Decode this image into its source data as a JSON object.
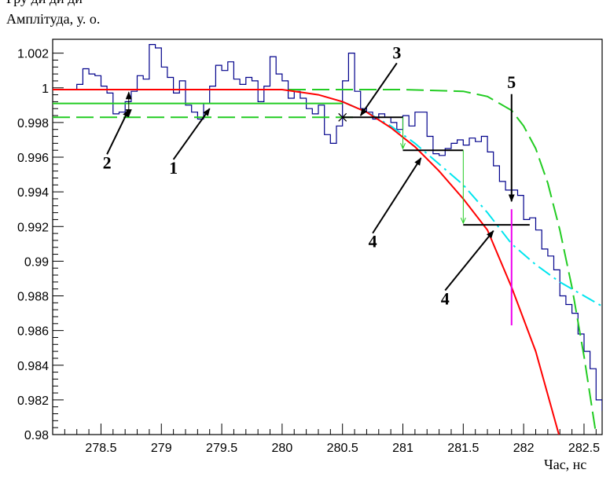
{
  "header_fragment": "Гру        ди           ди     ди",
  "chart_data": {
    "type": "line",
    "xlabel": "Час, нс",
    "ylabel": "Амплітуда, у. о.",
    "xlim": [
      278.1,
      282.65
    ],
    "ylim": [
      0.98,
      1.0028
    ],
    "xticks": [
      278.5,
      279,
      279.5,
      280,
      280.5,
      281,
      281.5,
      282,
      282.5
    ],
    "yticks": [
      0.98,
      0.982,
      0.984,
      0.986,
      0.988,
      0.99,
      0.992,
      0.994,
      0.996,
      0.998,
      1,
      1.002
    ],
    "ytick_labels": [
      "0.98",
      "0.982",
      "0.984",
      "0.986",
      "0.988",
      "0.99",
      "0.992",
      "0.994",
      "0.996",
      "0.998",
      "1",
      "1.002"
    ],
    "grid": false,
    "colors": {
      "histogram": "#00008b",
      "fit": "#ff0000",
      "envelope": "#22cc22",
      "smooth": "#00e5ee",
      "marker": "#ee00ee",
      "bars": "#000000"
    },
    "histogram": {
      "edges_start": 278.1,
      "bin_width": 0.05,
      "values": [
        0.9999,
        0.9999,
        0.9999,
        0.9999,
        1.0002,
        1.0011,
        1.0008,
        1.0007,
        1.0001,
        0.9997,
        0.9985,
        0.9986,
        0.9992,
        0.9998,
        1.0007,
        1.0005,
        1.0025,
        1.0023,
        1.0012,
        1.0006,
        0.9997,
        1.0004,
        0.999,
        0.9986,
        0.9982,
        0.9991,
        1.0001,
        1.0013,
        1.001,
        1.0015,
        1.0005,
        1.0002,
        1.0006,
        1.0004,
        0.9992,
        1.0001,
        1.0018,
        1.0008,
        1.0004,
        0.9994,
        0.9998,
        0.9994,
        0.9988,
        0.9985,
        0.999,
        0.9973,
        0.9968,
        0.9978,
        1.0004,
        1.002,
        0.9998,
        0.9988,
        0.9986,
        0.9982,
        0.9985,
        0.9983,
        0.998,
        0.9976,
        0.9984,
        0.9978,
        0.9986,
        0.9986,
        0.9972,
        0.9962,
        0.9961,
        0.9965,
        0.9968,
        0.997,
        0.9967,
        0.9971,
        0.9969,
        0.9972,
        0.9963,
        0.9955,
        0.9946,
        0.9941,
        0.9941,
        0.9938,
        0.9924,
        0.9925,
        0.9918,
        0.9907,
        0.9903,
        0.9895,
        0.988,
        0.9875,
        0.987,
        0.9858,
        0.9848,
        0.9838,
        0.982,
        0.9814,
        0.98
      ]
    },
    "fit_curve": {
      "x": [
        278.1,
        280.0,
        280.3,
        280.5,
        280.7,
        280.9,
        281.1,
        281.3,
        281.5,
        281.7,
        281.9,
        282.1,
        282.3
      ],
      "y": [
        0.9999,
        0.9999,
        0.9996,
        0.9992,
        0.9986,
        0.9977,
        0.9966,
        0.9952,
        0.9936,
        0.9918,
        0.9885,
        0.9848,
        0.9798
      ]
    },
    "smooth_curve": {
      "x": [
        280.5,
        280.7,
        280.9,
        281.1,
        281.3,
        281.5,
        281.7,
        281.9,
        282.1,
        282.3,
        282.5,
        282.65
      ],
      "y": [
        0.9992,
        0.9986,
        0.9978,
        0.9968,
        0.9956,
        0.9944,
        0.9928,
        0.991,
        0.9898,
        0.9888,
        0.988,
        0.9874
      ]
    },
    "shifted_curve": {
      "x": [
        278.1,
        280.0,
        280.5,
        281.0,
        281.5,
        281.7,
        281.9,
        282.0,
        282.1,
        282.2,
        282.3,
        282.4,
        282.5,
        282.6,
        282.65
      ],
      "y": [
        0.9999,
        0.9999,
        0.9999,
        0.9999,
        0.9998,
        0.9995,
        0.9987,
        0.9978,
        0.9965,
        0.9945,
        0.9918,
        0.9885,
        0.9845,
        0.98,
        0.978
      ]
    },
    "level_lines": {
      "upper": {
        "x": [
          278.1,
          280.6
        ],
        "y": 0.9999
      },
      "mean": {
        "x": [
          278.1,
          280.5
        ],
        "y": 0.9991
      },
      "lower": {
        "x": [
          278.1,
          280.6
        ],
        "y": 0.9983
      }
    },
    "steps": [
      {
        "x": [
          280.5,
          281.0
        ],
        "y": 0.9983
      },
      {
        "x": [
          281.0,
          281.5
        ],
        "y": 0.9964
      },
      {
        "x": [
          281.5,
          282.05
        ],
        "y": 0.9921
      }
    ],
    "vertical_marker": {
      "x": 281.9,
      "y": [
        0.9863,
        0.993
      ]
    },
    "annotations": [
      {
        "label": "1",
        "text_x": 279.1,
        "text_y": 0.99505,
        "arrow_to": [
          279.4,
          0.9988
        ]
      },
      {
        "label": "2",
        "text_x": 278.55,
        "text_y": 0.99535,
        "arrow_to": [
          278.73,
          0.99875
        ]
      },
      {
        "label": "3",
        "text_x": 280.95,
        "text_y": 1.0017,
        "arrow_to": [
          280.65,
          0.9984
        ]
      },
      {
        "label": "4",
        "text_x": 280.75,
        "text_y": 0.9908,
        "arrow_to": [
          281.15,
          0.99595
        ]
      },
      {
        "label": "4",
        "text_x": 281.35,
        "text_y": 0.9875,
        "arrow_to": [
          281.75,
          0.99175
        ]
      },
      {
        "label": "5",
        "text_x": 281.9,
        "text_y": 1.0,
        "arrow_to": [
          281.9,
          0.99345
        ]
      }
    ]
  }
}
